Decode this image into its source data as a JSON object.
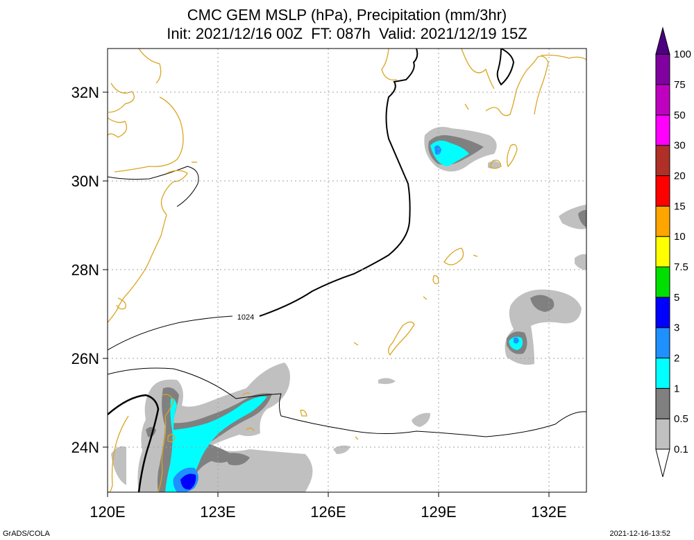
{
  "title": {
    "line1": "CMC GEM MSLP (hPa), Precipitation (mm/3hr)",
    "line2": "Init: 2021/12/16 00Z  FT: 087h  Valid: 2021/12/19 15Z"
  },
  "axes": {
    "lat_labels": [
      "32N",
      "30N",
      "28N",
      "26N",
      "24N"
    ],
    "lon_labels": [
      "120E",
      "123E",
      "126E",
      "129E",
      "132E"
    ]
  },
  "isobar_label": "1024",
  "colorbar": {
    "labels": [
      "0.1",
      "0.5",
      "1",
      "2",
      "3",
      "5",
      "7.5",
      "10",
      "15",
      "20",
      "30",
      "50",
      "75",
      "100"
    ],
    "colors": [
      "#c0c0c0",
      "#808080",
      "#00ffff",
      "#1e90ff",
      "#0000ff",
      "#00e000",
      "#ffff00",
      "#ffa500",
      "#ff0000",
      "#b03028",
      "#ff00ff",
      "#c000c0",
      "#8000a0",
      "#4b0082"
    ]
  },
  "colors": {
    "coastline": "#daa520",
    "isobar": "#000000",
    "grid": "#a0a0a0"
  },
  "footer": {
    "credit": "GrADS/COLA",
    "timestamp": "2021-12-16-13:52"
  }
}
